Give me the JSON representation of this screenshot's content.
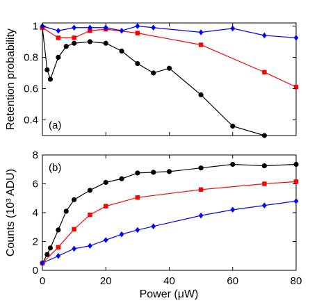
{
  "chart_data": [
    {
      "type": "line",
      "panel_label": "(a)",
      "xlabel": "",
      "ylabel": "Retention probability",
      "xlim": [
        0,
        80
      ],
      "ylim": [
        0.3,
        1.02
      ],
      "xticks": [
        "0",
        "20",
        "40",
        "60",
        "80"
      ],
      "yticks": [
        "0.4",
        "0.6",
        "0.8",
        "1"
      ],
      "ytick_values": [
        0.4,
        0.6,
        0.8,
        1.0
      ],
      "grid": false,
      "legend": "none",
      "series": [
        {
          "color": "#000000",
          "marker": "circle",
          "x": [
            0,
            1.5,
            2.5,
            5,
            7.5,
            10,
            15,
            20,
            25,
            30,
            35,
            40,
            50,
            60,
            70
          ],
          "y": [
            0.99,
            0.72,
            0.66,
            0.8,
            0.87,
            0.89,
            0.9,
            0.89,
            0.84,
            0.76,
            0.7,
            0.73,
            0.56,
            0.36,
            0.3
          ]
        },
        {
          "color": "#ff0000",
          "marker": "square",
          "x": [
            0,
            5,
            10,
            15,
            20,
            30,
            50,
            70,
            80
          ],
          "y": [
            0.99,
            0.925,
            0.925,
            0.97,
            0.98,
            0.955,
            0.88,
            0.705,
            0.61
          ]
        },
        {
          "color": "#0000ff",
          "marker": "diamond",
          "x": [
            0,
            5,
            10,
            15,
            20,
            25,
            30,
            35,
            50,
            60,
            70,
            80
          ],
          "y": [
            1.0,
            0.97,
            0.99,
            0.99,
            0.99,
            0.97,
            1.0,
            0.99,
            0.96,
            0.985,
            0.94,
            0.925
          ]
        }
      ]
    },
    {
      "type": "line",
      "panel_label": "(b)",
      "xlabel": "Power (μW)",
      "ylabel": "Counts (10³ ADU)",
      "xlim": [
        0,
        80
      ],
      "ylim": [
        0,
        8
      ],
      "xticks": [
        "0",
        "20",
        "40",
        "60",
        "80"
      ],
      "yticks": [
        "0",
        "2",
        "4",
        "6",
        "8"
      ],
      "ytick_values": [
        0,
        2,
        4,
        6,
        8
      ],
      "grid": false,
      "legend": "none",
      "series": [
        {
          "color": "#000000",
          "marker": "circle",
          "x": [
            0,
            1.5,
            2.5,
            5,
            7.5,
            10,
            15,
            20,
            25,
            30,
            35,
            40,
            50,
            60,
            70,
            80
          ],
          "y": [
            0.5,
            1.1,
            1.55,
            2.8,
            4.1,
            4.9,
            5.55,
            6.1,
            6.35,
            6.75,
            6.8,
            6.85,
            7.1,
            7.35,
            7.25,
            7.35
          ]
        },
        {
          "color": "#ff0000",
          "marker": "square",
          "x": [
            0,
            5,
            10,
            15,
            20,
            30,
            50,
            70,
            80
          ],
          "y": [
            0.5,
            1.6,
            2.85,
            3.85,
            4.45,
            5.05,
            5.6,
            6.0,
            6.15
          ]
        },
        {
          "color": "#0000ff",
          "marker": "diamond",
          "x": [
            0,
            5,
            10,
            15,
            20,
            25,
            30,
            35,
            50,
            60,
            70,
            80
          ],
          "y": [
            0.5,
            1.0,
            1.5,
            1.7,
            2.1,
            2.5,
            2.8,
            3.05,
            3.8,
            4.2,
            4.5,
            4.8
          ]
        }
      ]
    }
  ]
}
